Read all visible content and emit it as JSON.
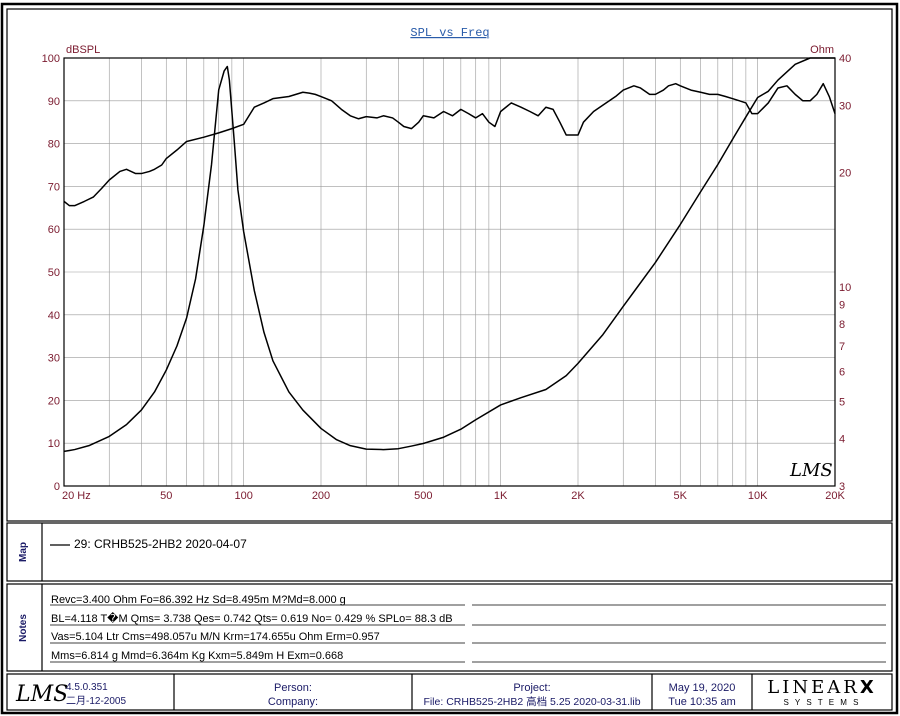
{
  "chart_data": {
    "type": "line",
    "title": "SPL vs Freq",
    "left_axis_label": "dBSPL",
    "right_axis_label": "Ohm",
    "x_scale": "log",
    "xlim": [
      20,
      20000
    ],
    "left_ylim": [
      0,
      100
    ],
    "right_ylim": [
      3,
      40
    ],
    "right_scale": "log",
    "grid": true,
    "x_ticks": [
      {
        "value": 20,
        "label": "20  Hz"
      },
      {
        "value": 50,
        "label": "50"
      },
      {
        "value": 100,
        "label": "100"
      },
      {
        "value": 200,
        "label": "200"
      },
      {
        "value": 500,
        "label": "500"
      },
      {
        "value": 1000,
        "label": "1K"
      },
      {
        "value": 2000,
        "label": "2K"
      },
      {
        "value": 5000,
        "label": "5K"
      },
      {
        "value": 10000,
        "label": "10K"
      },
      {
        "value": 20000,
        "label": "20K"
      }
    ],
    "left_ticks": [
      0,
      10,
      20,
      30,
      40,
      50,
      60,
      70,
      80,
      90,
      100
    ],
    "right_ticks": [
      3,
      4,
      5,
      6,
      7,
      8,
      9,
      10,
      20,
      30,
      40
    ],
    "series": [
      {
        "name": "SPL",
        "axis": "left",
        "x": [
          20,
          21,
          22,
          24,
          26,
          28,
          30,
          33,
          35,
          38,
          40,
          43,
          45,
          48,
          50,
          55,
          60,
          70,
          80,
          90,
          100,
          110,
          120,
          130,
          150,
          170,
          180,
          190,
          200,
          220,
          240,
          260,
          280,
          300,
          330,
          350,
          380,
          400,
          420,
          450,
          480,
          500,
          550,
          600,
          650,
          700,
          750,
          800,
          850,
          900,
          950,
          1000,
          1100,
          1200,
          1300,
          1400,
          1500,
          1600,
          1700,
          1800,
          1900,
          2000,
          2100,
          2300,
          2500,
          2800,
          3000,
          3300,
          3500,
          3800,
          4000,
          4300,
          4500,
          4800,
          5000,
          5500,
          6000,
          6500,
          7000,
          7500,
          8000,
          8500,
          9000,
          9500,
          10000,
          11000,
          12000,
          13000,
          14000,
          15000,
          16000,
          17000,
          18000,
          19000,
          20000
        ],
        "y": [
          66.5,
          65.5,
          65.5,
          66.5,
          67.5,
          69.5,
          71.5,
          73.5,
          74,
          73,
          73,
          73.5,
          74,
          75,
          76.5,
          78.5,
          80.5,
          81.5,
          82.5,
          83.5,
          84.5,
          88.5,
          89.5,
          90.5,
          91,
          92,
          91.8,
          91.5,
          91,
          90,
          88,
          86.5,
          85.8,
          86.3,
          86,
          86.5,
          86,
          85,
          84,
          83.5,
          85,
          86.5,
          86,
          87.5,
          86.5,
          88,
          87,
          86,
          87,
          85,
          84,
          87.5,
          89.5,
          88.5,
          87.5,
          86.5,
          88.5,
          88,
          85,
          82,
          82,
          82,
          85,
          87.5,
          89,
          91,
          92.5,
          93.5,
          93,
          91.5,
          91.5,
          92.5,
          93.5,
          94,
          93.5,
          92.5,
          92,
          91.5,
          91.5,
          91,
          90.5,
          90,
          89.5,
          87,
          87,
          89.5,
          93,
          93.5,
          91.5,
          90,
          90,
          91.5,
          94,
          91,
          87
        ]
      },
      {
        "name": "Impedance",
        "axis": "right",
        "x": [
          20,
          21,
          22,
          25,
          30,
          35,
          40,
          45,
          50,
          55,
          60,
          65,
          70,
          75,
          80,
          84,
          86.4,
          88,
          92,
          95,
          100,
          110,
          120,
          130,
          150,
          170,
          200,
          230,
          260,
          300,
          350,
          400,
          450,
          500,
          600,
          700,
          800,
          1000,
          1200,
          1500,
          1800,
          2000,
          2500,
          3000,
          4000,
          5000,
          6000,
          7000,
          8000,
          9000,
          10000,
          11000,
          12000,
          14000,
          16000,
          18000,
          20000
        ],
        "y": [
          3.7,
          3.72,
          3.74,
          3.83,
          4.05,
          4.35,
          4.75,
          5.3,
          6.05,
          7.0,
          8.3,
          10.5,
          14.5,
          21.0,
          33.0,
          37.0,
          38.0,
          35.0,
          24.0,
          18.0,
          14.0,
          9.8,
          7.6,
          6.4,
          5.3,
          4.75,
          4.25,
          3.97,
          3.83,
          3.75,
          3.74,
          3.76,
          3.82,
          3.88,
          4.03,
          4.23,
          4.48,
          4.9,
          5.12,
          5.38,
          5.85,
          6.3,
          7.5,
          8.9,
          11.6,
          14.6,
          17.8,
          21.0,
          24.5,
          28.0,
          31.5,
          32.7,
          35.0,
          38.5,
          42.0,
          45.5,
          49.0
        ]
      }
    ],
    "watermark_logo": "LMS"
  },
  "map": {
    "section_label": "Map",
    "legend_entry": "29: CRHB525-2HB2  2020-04-07"
  },
  "notes": {
    "section_label": "Notes",
    "lines": [
      "Revc=3.400 Ohm  Fo=86.392 Hz  Sd=8.495m M?Md=8.000 g",
      "BL=4.118 T�M  Qms= 3.738  Qes= 0.742  Qts= 0.619  No= 0.429 %  SPLo= 88.3 dB",
      "Vas=5.104 Ltr  Cms=498.057u M/N  Krm=174.655u Ohm  Erm=0.957",
      "Mms=6.814 g  Mmd=6.364m Kg  Kxm=5.849m H  Exm=0.668"
    ]
  },
  "footer": {
    "logo": "LMS",
    "version": "4.5.0.351",
    "build_date": "二月-12-2005",
    "person_label": "Person:",
    "company_label": "Company:",
    "project_label": "Project:",
    "file_text": "File: CRHB525-2HB2 高档 5.25 2020-03-31.lib",
    "date": "May 19, 2020",
    "time": "Tue 10:35 am",
    "brand": "LINEAR",
    "brand_x": "X",
    "brand_sub": "S Y S T E M S"
  },
  "colors": {
    "title": "#2a5caa",
    "tick_labels": "#7a1a2e",
    "footer_text": "#1a1a66",
    "grid": "#9a9a9a",
    "curve": "#000000"
  }
}
